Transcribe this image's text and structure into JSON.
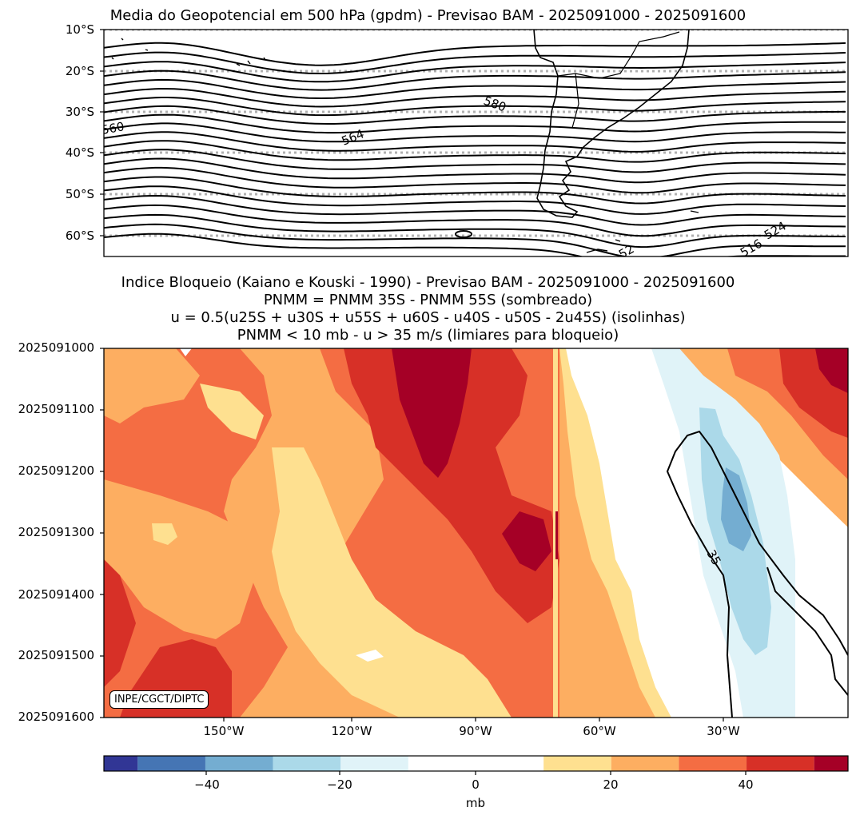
{
  "chart_data": [
    {
      "type": "contour-map",
      "title": "Media do Geopotencial em 500 hPa (gpdm) - Previsao BAM - 2025091000 - 2025091600",
      "y_ticks": [
        "10°S",
        "20°S",
        "30°S",
        "40°S",
        "50°S",
        "60°S"
      ],
      "contour_labels": [
        "560",
        "564",
        "580",
        "524",
        "516",
        "52"
      ],
      "gridlines": "dotted latitude lines",
      "features": [
        "South America coastline",
        "geopotential isolines"
      ]
    },
    {
      "type": "heatmap",
      "title_lines": [
        "Indice Bloqueio (Kaiano e Kouski - 1990) - Previsao BAM - 2025091000 - 2025091600",
        "PNMM = PNMM 35S - PNMM 55S (sombreado)",
        "u = 0.5(u25S + u30S + u55S + u60S - u40S - u50S - 2u45S) (isolinhas)",
        "PNMM < 10 mb - u > 35 m/s (limiares para bloqueio)"
      ],
      "y_ticks": [
        "2025091000",
        "2025091100",
        "2025091200",
        "2025091300",
        "2025091400",
        "2025091500",
        "2025091600"
      ],
      "x_ticks": [
        "150°W",
        "120°W",
        "90°W",
        "60°W",
        "30°W"
      ],
      "contour_label": "35",
      "colorbar": {
        "label": "mb",
        "ticks": [
          "−40",
          "−20",
          "0",
          "20",
          "40"
        ],
        "levels": [
          -55,
          -50,
          -40,
          -30,
          -20,
          -10,
          10,
          20,
          30,
          40,
          50,
          55
        ],
        "colors": [
          "#313695",
          "#4575b4",
          "#74add1",
          "#abd9e9",
          "#e0f3f8",
          "#ffffff",
          "#fee090",
          "#fdae61",
          "#f46d43",
          "#d73027",
          "#a50026"
        ]
      },
      "credit": "INPE/CGCT/DIPTC"
    }
  ]
}
